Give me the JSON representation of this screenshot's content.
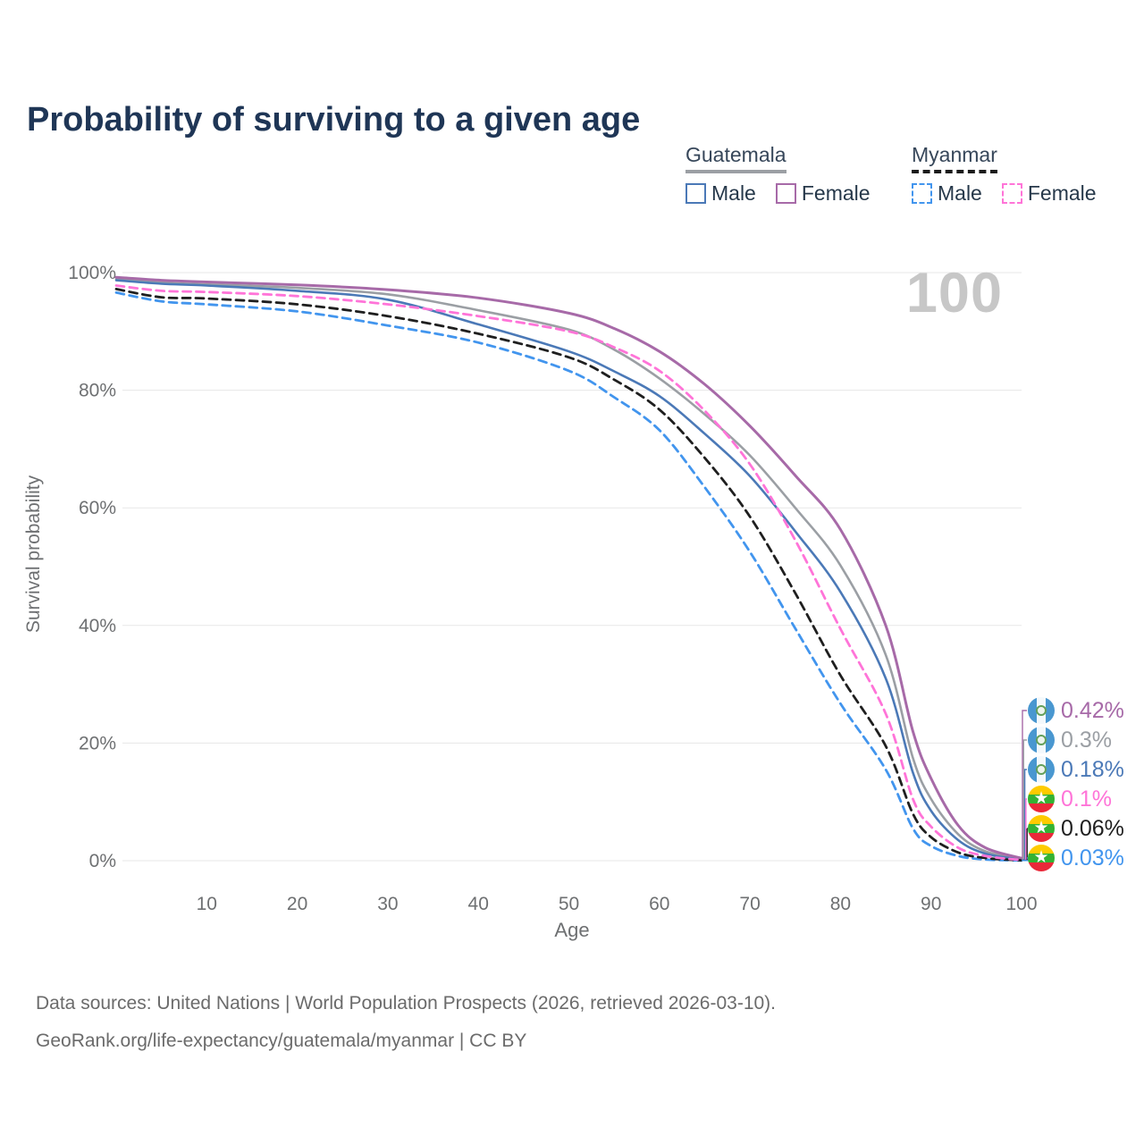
{
  "title": "Probability of surviving to a given age",
  "watermark": "100",
  "legend": {
    "groups": [
      {
        "country": "Guatemala",
        "line_style": "solid",
        "underline_color": "#9b9fa4",
        "items": [
          {
            "label": "Male",
            "color": "#4b79b7",
            "dashed": false
          },
          {
            "label": "Female",
            "color": "#a76aa8",
            "dashed": false
          }
        ]
      },
      {
        "country": "Myanmar",
        "line_style": "dashed",
        "underline_color": "#1b1b1b",
        "items": [
          {
            "label": "Male",
            "color": "#4295ee",
            "dashed": true
          },
          {
            "label": "Female",
            "color": "#ff74d8",
            "dashed": true
          }
        ]
      }
    ]
  },
  "chart_data": {
    "type": "line",
    "title": "Probability of surviving to a given age",
    "xlabel": "Age",
    "ylabel": "Survival probability",
    "xlim": [
      0,
      100
    ],
    "ylim": [
      0,
      100
    ],
    "x_ticks": [
      10,
      20,
      30,
      40,
      50,
      60,
      70,
      80,
      90,
      100
    ],
    "y_ticks": [
      0,
      20,
      40,
      60,
      80,
      100
    ],
    "y_tick_suffix": "%",
    "grid": "horizontal",
    "legend_position": "top-right",
    "ages": [
      0,
      5,
      10,
      20,
      30,
      40,
      50,
      55,
      60,
      65,
      70,
      75,
      80,
      85,
      88,
      90,
      93,
      96,
      100
    ],
    "series": [
      {
        "name": "Guatemala Female",
        "country": "Guatemala",
        "sex": "Female",
        "color": "#a76aa8",
        "dashed": false,
        "width": 3,
        "flag": "guatemala",
        "end_label": "0.42%",
        "values": [
          99.2,
          98.7,
          98.4,
          97.9,
          97.1,
          95.7,
          93.1,
          90.5,
          86.6,
          81.0,
          73.9,
          65.5,
          56.3,
          40.0,
          22.0,
          14.0,
          6.0,
          2.2,
          0.42
        ]
      },
      {
        "name": "Guatemala All",
        "country": "Guatemala",
        "sex": "All",
        "color": "#9b9fa4",
        "dashed": false,
        "width": 2.6,
        "flag": "guatemala",
        "end_label": "0.3%",
        "values": [
          98.9,
          98.3,
          98.0,
          97.4,
          96.3,
          93.6,
          90.3,
          86.9,
          82.0,
          75.9,
          68.9,
          60.0,
          50.2,
          35.0,
          17.5,
          10.5,
          4.5,
          1.6,
          0.3
        ]
      },
      {
        "name": "Guatemala Male",
        "country": "Guatemala",
        "sex": "Male",
        "color": "#4b79b7",
        "dashed": false,
        "width": 2.6,
        "flag": "guatemala",
        "end_label": "0.18%",
        "values": [
          98.7,
          98.1,
          97.8,
          96.9,
          95.4,
          91.2,
          86.6,
          83.2,
          79.0,
          72.6,
          65.4,
          56.0,
          45.7,
          31.0,
          15.0,
          8.5,
          3.5,
          1.2,
          0.18
        ]
      },
      {
        "name": "Myanmar Female",
        "country": "Myanmar",
        "sex": "Female",
        "color": "#ff74d8",
        "dashed": true,
        "width": 2.8,
        "flag": "myanmar",
        "end_label": "0.1%",
        "values": [
          97.8,
          96.9,
          96.7,
          96.0,
          94.6,
          92.6,
          90.0,
          87.3,
          83.3,
          76.5,
          67.4,
          54.5,
          39.4,
          25.0,
          10.5,
          5.8,
          2.2,
          0.8,
          0.1
        ]
      },
      {
        "name": "Myanmar All",
        "country": "Myanmar",
        "sex": "All",
        "color": "#1f1f1f",
        "dashed": true,
        "width": 2.8,
        "flag": "myanmar",
        "end_label": "0.06%",
        "values": [
          97.2,
          95.8,
          95.6,
          94.6,
          92.6,
          89.6,
          85.6,
          81.8,
          76.7,
          68.5,
          58.5,
          45.5,
          31.5,
          19.5,
          8.0,
          4.0,
          1.4,
          0.45,
          0.06
        ]
      },
      {
        "name": "Myanmar Male",
        "country": "Myanmar",
        "sex": "Male",
        "color": "#4295ee",
        "dashed": true,
        "width": 2.8,
        "flag": "myanmar",
        "end_label": "0.03%",
        "values": [
          96.6,
          95.1,
          94.6,
          93.4,
          91.0,
          88.1,
          83.3,
          78.8,
          73.2,
          63.5,
          52.5,
          39.5,
          26.7,
          15.5,
          5.5,
          2.5,
          0.8,
          0.2,
          0.03
        ]
      }
    ]
  },
  "footer": {
    "line1": "Data sources: United Nations | World Population Prospects (2026, retrieved 2026-03-10).",
    "line2": "GeoRank.org/life-expectancy/guatemala/myanmar | CC BY"
  }
}
